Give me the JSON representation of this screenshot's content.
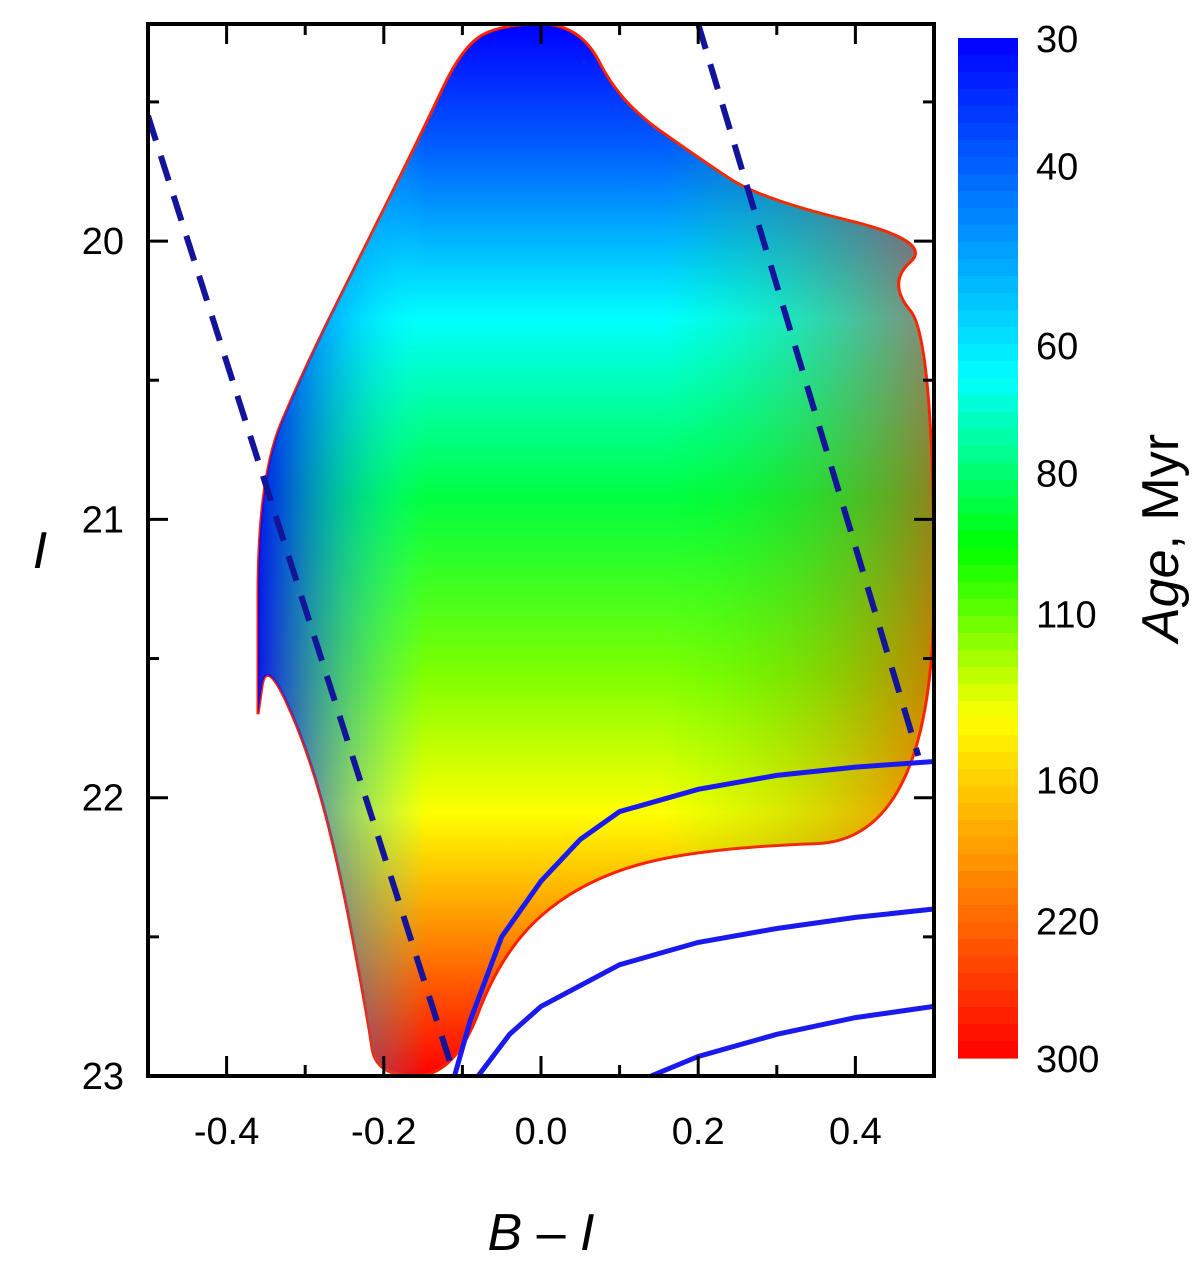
{
  "chart_data": {
    "type": "heatmap",
    "xlabel_parts": [
      "B",
      "–",
      "I"
    ],
    "ylabel": "I",
    "xlim": [
      -0.5,
      0.5
    ],
    "ylim": [
      23,
      19.22
    ],
    "y_inverted": true,
    "x_ticks": [
      "-0.4",
      "-0.2",
      "0.0",
      "0.2",
      "0.4"
    ],
    "x_tick_values": [
      -0.4,
      -0.2,
      0.0,
      0.2,
      0.4
    ],
    "x_minor_ticks": [
      -0.3,
      -0.1,
      0.1,
      0.3
    ],
    "y_ticks": [
      "20",
      "21",
      "22",
      "23"
    ],
    "y_tick_values": [
      20,
      21,
      22,
      23
    ],
    "y_minor_ticks": [
      19.5,
      20.5,
      21.5,
      22.5
    ],
    "colorbar": {
      "label_italic": "Age",
      "label_rest": ", Myr",
      "ticks": [
        "30",
        "40",
        "60",
        "80",
        "110",
        "160",
        "220",
        "300"
      ],
      "tick_values": [
        30,
        40,
        60,
        80,
        110,
        160,
        220,
        300
      ],
      "scale": "log",
      "range": [
        30,
        300
      ],
      "colors": [
        "#0000ff",
        "#0080ff",
        "#00ffff",
        "#00ff00",
        "#ffff00",
        "#ff8000",
        "#ff0000"
      ]
    },
    "filled_region": {
      "description_color": "age",
      "upper_boundary": [
        [
          -0.36,
          21.7
        ],
        [
          -0.36,
          20.85
        ],
        [
          -0.3,
          20.45
        ],
        [
          -0.22,
          20.0
        ],
        [
          -0.15,
          19.6
        ],
        [
          -0.1,
          19.3
        ],
        [
          -0.05,
          19.22
        ],
        [
          0.05,
          19.22
        ],
        [
          0.1,
          19.5
        ],
        [
          0.2,
          19.7
        ],
        [
          0.28,
          19.85
        ],
        [
          0.5,
          20.0
        ],
        [
          0.44,
          20.15
        ],
        [
          0.5,
          20.35
        ]
      ],
      "lower_boundary": [
        [
          -0.36,
          21.7
        ],
        [
          -0.35,
          21.5
        ],
        [
          -0.3,
          21.8
        ],
        [
          -0.26,
          22.2
        ],
        [
          -0.22,
          22.8
        ],
        [
          -0.21,
          23.0
        ],
        [
          -0.11,
          23.0
        ],
        [
          -0.05,
          22.55
        ],
        [
          0.05,
          22.3
        ],
        [
          0.2,
          22.18
        ],
        [
          0.5,
          22.15
        ]
      ]
    },
    "series": [
      {
        "style": "dashed",
        "color": "#14149a",
        "x": [
          -0.5,
          -0.11
        ],
        "y": [
          19.55,
          23.0
        ]
      },
      {
        "style": "dashed",
        "color": "#14149a",
        "x": [
          0.2,
          0.48
        ],
        "y": [
          19.22,
          21.85
        ]
      },
      {
        "style": "solid",
        "color": "#1a1aee",
        "x": [
          -0.11,
          -0.09,
          -0.05,
          0.0,
          0.05,
          0.1,
          0.2,
          0.3,
          0.4,
          0.5
        ],
        "y": [
          23.0,
          22.8,
          22.5,
          22.3,
          22.15,
          22.05,
          21.97,
          21.92,
          21.89,
          21.87
        ]
      },
      {
        "style": "solid",
        "color": "#1a1aee",
        "x": [
          -0.08,
          -0.04,
          0.0,
          0.1,
          0.2,
          0.3,
          0.4,
          0.5
        ],
        "y": [
          23.0,
          22.85,
          22.75,
          22.6,
          22.52,
          22.47,
          22.43,
          22.4
        ]
      },
      {
        "style": "solid",
        "color": "#1a1aee",
        "x": [
          0.14,
          0.2,
          0.3,
          0.4,
          0.5
        ],
        "y": [
          23.0,
          22.93,
          22.85,
          22.79,
          22.75
        ]
      }
    ]
  }
}
